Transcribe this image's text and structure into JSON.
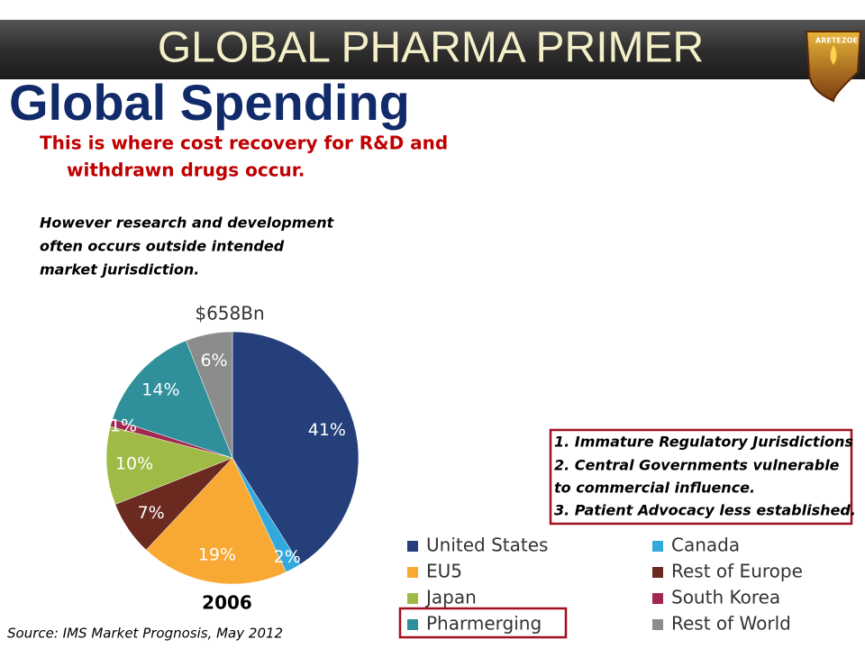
{
  "header": {
    "title": "GLOBAL PHARMA PRIMER",
    "logo_left": "ARETE",
    "logo_right": "ZOE"
  },
  "slide": {
    "heading": "Global Spending",
    "lead": [
      "This is where cost recovery for R&D and",
      "withdrawn drugs occur."
    ],
    "note": [
      "However research and development",
      "often occurs outside  intended",
      "market  jurisdiction."
    ],
    "box": [
      "1. Immature Regulatory Jurisdictions",
      "2. Central Governments  vulnerable",
      " to commercial influence.",
      "3. Patient Advocacy less established."
    ],
    "source": "Source: IMS Market Prognosis, May 2012"
  },
  "chart_data": {
    "type": "pie",
    "title": "$658Bn",
    "subtitle": "2006",
    "categories": [
      "United States",
      "Canada",
      "EU5",
      "Rest of Europe",
      "Japan",
      "South Korea",
      "Pharmerging",
      "Rest of World"
    ],
    "values": [
      41,
      2,
      19,
      7,
      10,
      1,
      14,
      6
    ],
    "value_labels": [
      "41%",
      "2%",
      "19%",
      "7%",
      "10%",
      "1%",
      "14%",
      "6%"
    ],
    "colors": [
      "#243f7a",
      "#31a9dc",
      "#f8a933",
      "#6b2a20",
      "#9fbb45",
      "#a1284f",
      "#2f8f9a",
      "#8c8c8c"
    ]
  }
}
